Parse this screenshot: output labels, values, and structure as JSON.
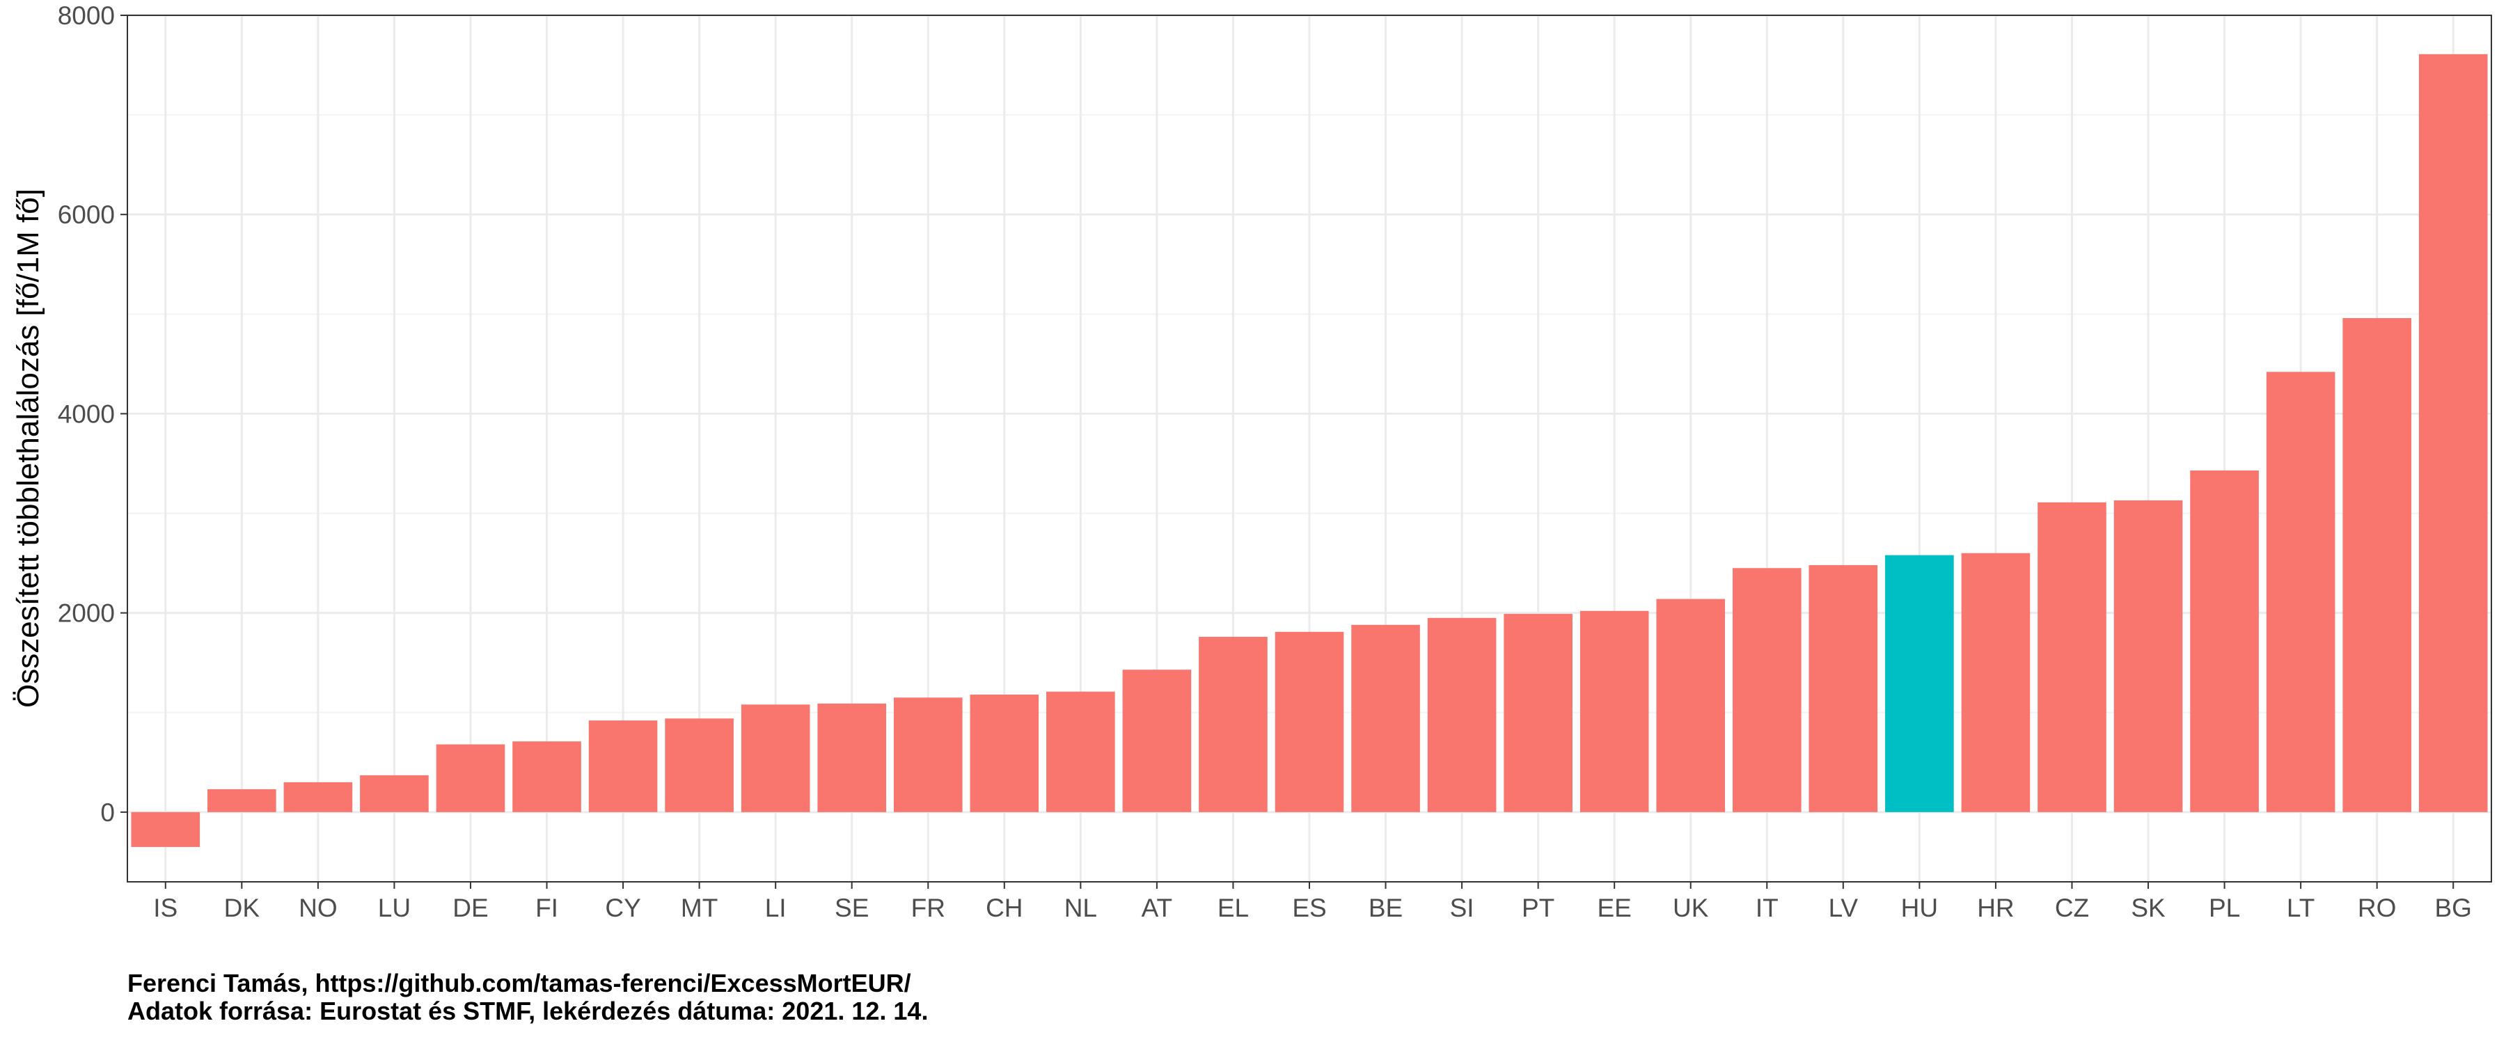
{
  "chart_data": {
    "type": "bar",
    "title": "",
    "xlabel": "",
    "ylabel": "Összesített többlethalálozás [fő/1M fő]",
    "ylim": [
      -700,
      8000
    ],
    "yticks": [
      0,
      2000,
      4000,
      6000,
      8000
    ],
    "grid": true,
    "highlight_category": "HU",
    "colors": {
      "default": "#F8766D",
      "highlight": "#00BFC4",
      "grid": "#ebebeb",
      "grid_minor": "#f3f3f3",
      "frame": "#333333"
    },
    "categories": [
      "IS",
      "DK",
      "NO",
      "LU",
      "DE",
      "FI",
      "CY",
      "MT",
      "LI",
      "SE",
      "FR",
      "CH",
      "NL",
      "AT",
      "EL",
      "ES",
      "BE",
      "SI",
      "PT",
      "EE",
      "UK",
      "IT",
      "LV",
      "HU",
      "HR",
      "CZ",
      "SK",
      "PL",
      "LT",
      "RO",
      "BG"
    ],
    "values": [
      -350,
      230,
      300,
      370,
      680,
      710,
      920,
      940,
      1080,
      1090,
      1150,
      1180,
      1210,
      1430,
      1760,
      1810,
      1880,
      1950,
      1990,
      2020,
      2140,
      2450,
      2480,
      2580,
      2600,
      3110,
      3130,
      3430,
      4420,
      4960,
      7610
    ]
  },
  "caption": {
    "line1": "Ferenci Tamás, https://github.com/tamas-ferenci/ExcessMortEUR/",
    "line2": "Adatok forrása: Eurostat és STMF, lekérdezés dátuma: 2021. 12. 14."
  }
}
